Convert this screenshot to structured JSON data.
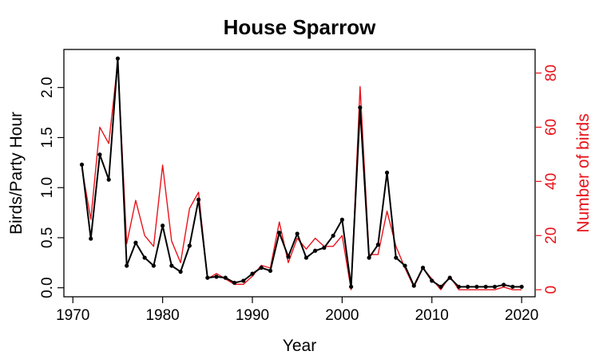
{
  "chart_data": {
    "type": "line",
    "title": "House Sparrow",
    "xlabel": "Year",
    "ylabel": "Birds/Party Hour",
    "y2label": "Number of birds",
    "xlim": [
      1970,
      2020
    ],
    "ylim": [
      0,
      2.3
    ],
    "y2lim": [
      0,
      85
    ],
    "xticks": [
      1970,
      1980,
      1990,
      2000,
      2010,
      2020
    ],
    "yticks": [
      "0.0",
      "0.5",
      "1.0",
      "1.5",
      "2.0"
    ],
    "y2ticks": [
      "0",
      "20",
      "40",
      "60",
      "80"
    ],
    "grid": false,
    "colors": {
      "primary": "#000000",
      "secondary": "#e8131b"
    },
    "x": [
      1971,
      1972,
      1973,
      1974,
      1975,
      1976,
      1977,
      1978,
      1979,
      1980,
      1981,
      1982,
      1983,
      1984,
      1985,
      1986,
      1987,
      1988,
      1989,
      1990,
      1991,
      1992,
      1993,
      1994,
      1995,
      1996,
      1997,
      1998,
      1999,
      2000,
      2001,
      2002,
      2003,
      2004,
      2005,
      2006,
      2007,
      2008,
      2009,
      2010,
      2011,
      2012,
      2013,
      2014,
      2015,
      2016,
      2017,
      2018,
      2019,
      2020
    ],
    "series": [
      {
        "axis": "left",
        "values": [
          1.23,
          0.49,
          1.33,
          1.08,
          2.29,
          0.22,
          0.45,
          0.3,
          0.22,
          0.62,
          0.22,
          0.16,
          0.42,
          0.88,
          0.1,
          0.11,
          0.1,
          0.05,
          0.07,
          0.14,
          0.2,
          0.17,
          0.55,
          0.31,
          0.54,
          0.3,
          0.37,
          0.4,
          0.52,
          0.68,
          0.01,
          1.8,
          0.3,
          0.43,
          1.15,
          0.3,
          0.22,
          0.02,
          0.2,
          0.07,
          0.01,
          0.1,
          0.01,
          0.01,
          0.01,
          0.01,
          0.01,
          0.03,
          0.01,
          0.01
        ]
      },
      {
        "axis": "right",
        "values": [
          45,
          26,
          60,
          54,
          84,
          17,
          33,
          20,
          16,
          46,
          18,
          10,
          30,
          36,
          4,
          6,
          4,
          2,
          2,
          5,
          9,
          8,
          25,
          10,
          19,
          15,
          19,
          16,
          16,
          20,
          0,
          75,
          13,
          13,
          29,
          16,
          8,
          1,
          8,
          4,
          0,
          5,
          0,
          0,
          0,
          0,
          0,
          1,
          0,
          0
        ]
      }
    ]
  }
}
